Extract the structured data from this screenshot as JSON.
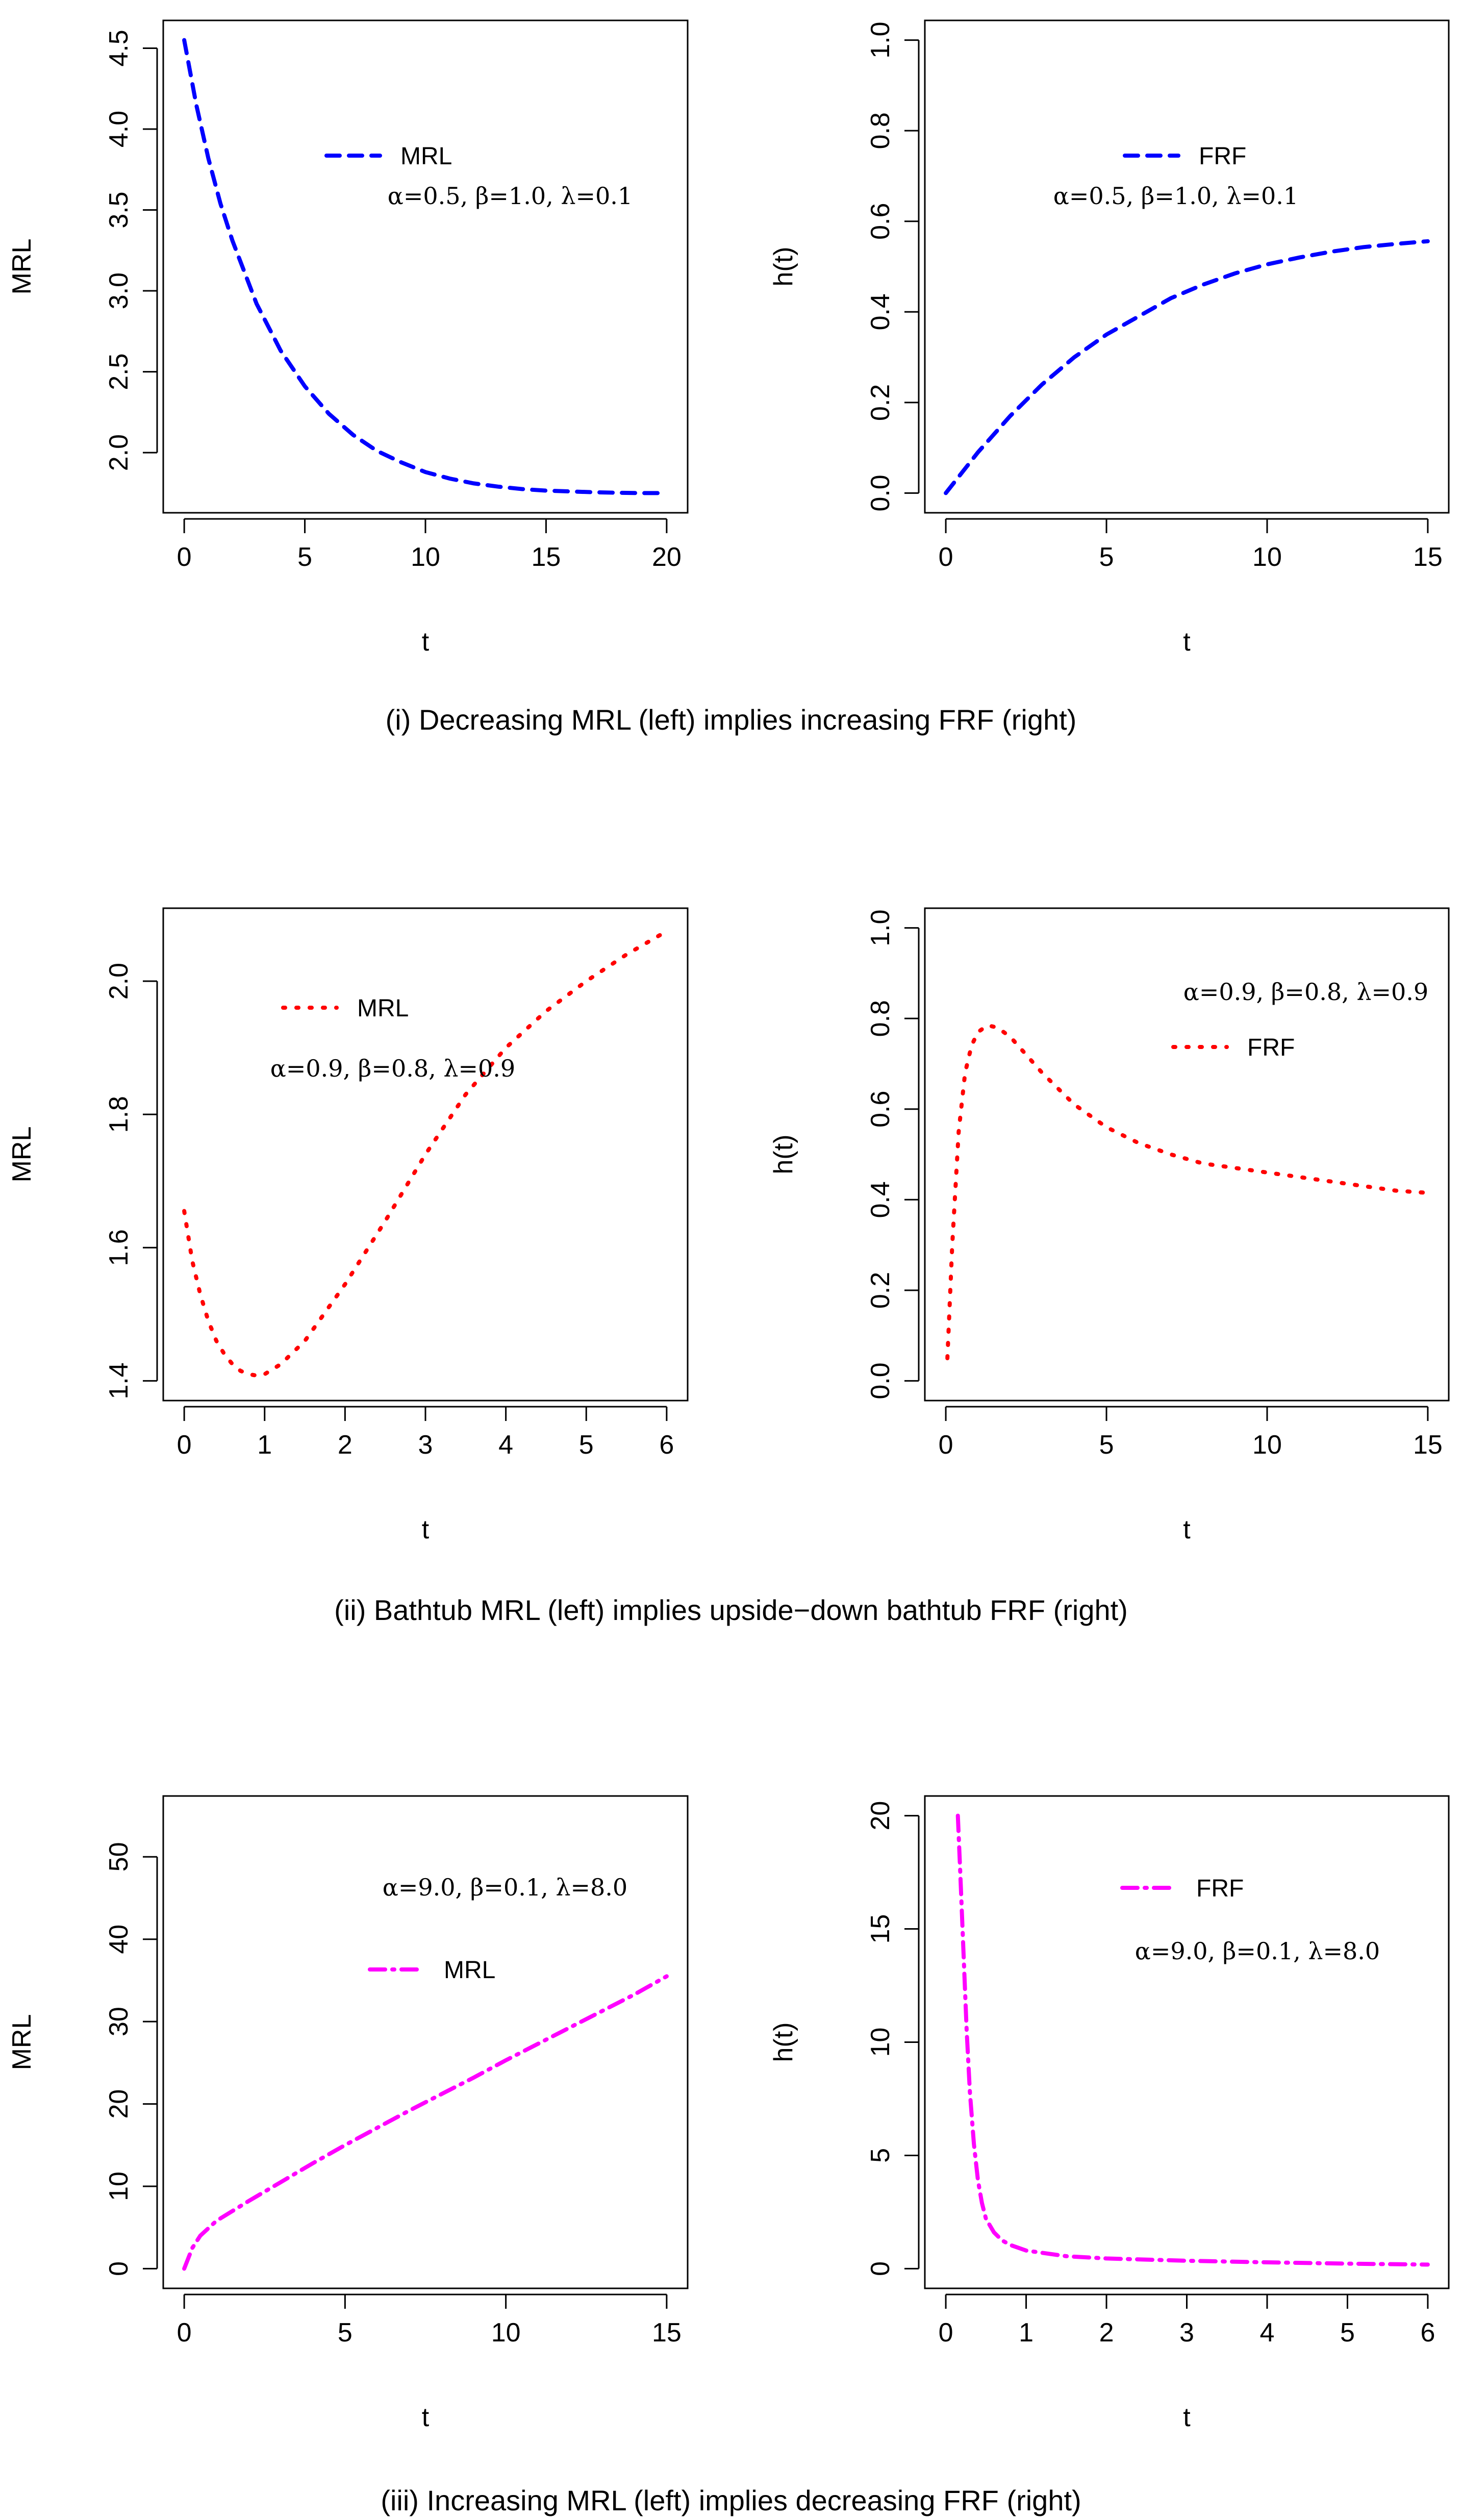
{
  "figure": {
    "captions": [
      "(i) Decreasing MRL (left) implies increasing FRF (right)",
      "(ii) Bathtub MRL (left) implies upside−down bathtub FRF (right)",
      "(iii) Increasing MRL (left) implies decreasing FRF (right)"
    ]
  },
  "chart_data": [
    {
      "id": "i-left",
      "type": "line",
      "xlabel": "t",
      "ylabel": "MRL",
      "xlim": [
        0,
        20
      ],
      "ylim": [
        1.75,
        4.55
      ],
      "xticks": [
        "0",
        "5",
        "10",
        "15",
        "20"
      ],
      "yticks": [
        "2.0",
        "2.5",
        "3.0",
        "3.5",
        "4.0",
        "4.5"
      ],
      "legend": "MRL",
      "params": "α=0.5, β=1.0, λ=0.1",
      "color": "#0000ff",
      "dash": "dashed",
      "x": [
        0,
        0.5,
        1,
        1.5,
        2,
        3,
        4,
        5,
        6,
        7,
        8,
        9,
        10,
        11,
        12,
        13,
        14,
        15,
        16,
        17,
        18,
        19,
        20
      ],
      "y": [
        4.55,
        4.15,
        3.82,
        3.54,
        3.31,
        2.92,
        2.63,
        2.41,
        2.24,
        2.11,
        2.01,
        1.94,
        1.88,
        1.84,
        1.81,
        1.79,
        1.775,
        1.765,
        1.76,
        1.755,
        1.752,
        1.75,
        1.75
      ]
    },
    {
      "id": "i-right",
      "type": "line",
      "xlabel": "t",
      "ylabel": "h(t)",
      "xlim": [
        0,
        15
      ],
      "ylim": [
        0,
        1.0
      ],
      "xticks": [
        "0",
        "5",
        "10",
        "15"
      ],
      "yticks": [
        "0.0",
        "0.2",
        "0.4",
        "0.6",
        "0.8",
        "1.0"
      ],
      "legend": "FRF",
      "params": "α=0.5, β=1.0, λ=0.1",
      "color": "#0000ff",
      "dash": "dashed",
      "x": [
        0,
        1,
        2,
        3,
        4,
        5,
        6,
        7,
        8,
        9,
        10,
        11,
        12,
        13,
        14,
        15
      ],
      "y": [
        0.0,
        0.09,
        0.17,
        0.24,
        0.3,
        0.35,
        0.39,
        0.43,
        0.46,
        0.485,
        0.505,
        0.52,
        0.533,
        0.543,
        0.55,
        0.556
      ]
    },
    {
      "id": "ii-left",
      "type": "line",
      "xlabel": "t",
      "ylabel": "MRL",
      "xlim": [
        0,
        6
      ],
      "ylim": [
        1.4,
        2.08
      ],
      "xticks": [
        "0",
        "1",
        "2",
        "3",
        "4",
        "5",
        "6"
      ],
      "yticks": [
        "1.4",
        "1.6",
        "1.8",
        "2.0"
      ],
      "legend": "MRL",
      "params": "α=0.9, β=0.8, λ=0.9",
      "color": "#ff0000",
      "dash": "dotted",
      "x": [
        0,
        0.1,
        0.2,
        0.3,
        0.4,
        0.5,
        0.6,
        0.7,
        0.8,
        0.9,
        1.0,
        1.2,
        1.5,
        2,
        2.5,
        3,
        3.5,
        4,
        4.5,
        5,
        5.5,
        6
      ],
      "y": [
        1.655,
        1.58,
        1.53,
        1.49,
        1.46,
        1.44,
        1.425,
        1.415,
        1.41,
        1.408,
        1.41,
        1.425,
        1.46,
        1.545,
        1.64,
        1.74,
        1.83,
        1.9,
        1.955,
        2.0,
        2.04,
        2.075
      ]
    },
    {
      "id": "ii-right",
      "type": "line",
      "xlabel": "t",
      "ylabel": "h(t)",
      "xlim": [
        0,
        15
      ],
      "ylim": [
        0,
        1.0
      ],
      "xticks": [
        "0",
        "5",
        "10",
        "15"
      ],
      "yticks": [
        "0.0",
        "0.2",
        "0.4",
        "0.6",
        "0.8",
        "1.0"
      ],
      "legend": "FRF",
      "params": "α=0.9, β=0.8, λ=0.9",
      "color": "#ff0000",
      "dash": "dotted",
      "x": [
        0.05,
        0.2,
        0.4,
        0.6,
        0.8,
        1.0,
        1.3,
        1.6,
        2,
        2.5,
        3,
        3.5,
        4,
        5,
        6,
        7,
        8,
        9,
        10,
        11,
        12,
        13,
        14,
        15
      ],
      "y": [
        0.05,
        0.3,
        0.55,
        0.68,
        0.74,
        0.77,
        0.785,
        0.78,
        0.76,
        0.72,
        0.68,
        0.645,
        0.61,
        0.56,
        0.525,
        0.5,
        0.48,
        0.47,
        0.46,
        0.45,
        0.44,
        0.43,
        0.42,
        0.415
      ]
    },
    {
      "id": "iii-left",
      "type": "line",
      "xlabel": "t",
      "ylabel": "MRL",
      "xlim": [
        0,
        15
      ],
      "ylim": [
        0,
        55
      ],
      "xticks": [
        "0",
        "5",
        "10",
        "15"
      ],
      "yticks": [
        "0",
        "10",
        "20",
        "30",
        "40",
        "50"
      ],
      "legend": "MRL",
      "params": "α=9.0, β=0.1, λ=8.0",
      "color": "#ff00ff",
      "dash": "dashdot",
      "x": [
        0,
        0.25,
        0.5,
        1,
        1.5,
        2,
        3,
        4,
        5,
        6,
        7,
        8,
        9,
        10,
        11,
        12,
        13,
        14,
        15
      ],
      "y": [
        0,
        2.5,
        4.0,
        5.8,
        7.0,
        8.2,
        10.5,
        12.8,
        15.0,
        17.1,
        19.2,
        21.2,
        23.2,
        25.3,
        27.3,
        29.3,
        31.3,
        33.3,
        35.5
      ]
    },
    {
      "id": "iii-right",
      "type": "line",
      "xlabel": "t",
      "ylabel": "h(t)",
      "xlim": [
        0,
        6
      ],
      "ylim": [
        0,
        20
      ],
      "xticks": [
        "0",
        "1",
        "2",
        "3",
        "4",
        "5",
        "6"
      ],
      "yticks": [
        "0",
        "5",
        "10",
        "15",
        "20"
      ],
      "legend": "FRF",
      "params": "α=9.0, β=0.1, λ=8.0",
      "color": "#ff00ff",
      "dash": "dashdot",
      "x": [
        0.15,
        0.18,
        0.22,
        0.26,
        0.3,
        0.35,
        0.4,
        0.45,
        0.5,
        0.6,
        0.7,
        0.8,
        1.0,
        1.5,
        2,
        3,
        4,
        5,
        6
      ],
      "y": [
        20.0,
        17.5,
        14.0,
        10.5,
        7.8,
        5.5,
        3.9,
        2.9,
        2.2,
        1.6,
        1.25,
        1.05,
        0.8,
        0.55,
        0.45,
        0.35,
        0.28,
        0.22,
        0.18
      ]
    }
  ]
}
